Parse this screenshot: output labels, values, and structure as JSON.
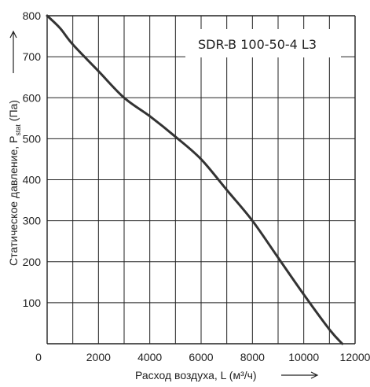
{
  "chart_data": {
    "type": "line",
    "title": "SDR-B 100-50-4 L3",
    "xlabel": "Расход воздуха, L (м³/ч)",
    "ylabel_main": "Статическое давление, P",
    "ylabel_sub": "stat",
    "ylabel_unit": " (Па)",
    "xlim": [
      0,
      12000
    ],
    "ylim": [
      0,
      800
    ],
    "x_ticks": [
      "0",
      "2000",
      "4000",
      "6000",
      "8000",
      "10000",
      "12000"
    ],
    "y_ticks": [
      "100",
      "200",
      "300",
      "400",
      "500",
      "600",
      "700",
      "800"
    ],
    "grid": true,
    "series": [
      {
        "x": [
          0,
          500,
          1000,
          2000,
          3000,
          4000,
          5000,
          6000,
          7000,
          8000,
          9000,
          10000,
          11000,
          11500
        ],
        "y": [
          800,
          770,
          730,
          665,
          600,
          555,
          505,
          450,
          375,
          300,
          210,
          120,
          35,
          0
        ]
      }
    ],
    "colors": {
      "line": "#333333",
      "grid": "#222222",
      "axis": "#222222"
    }
  }
}
